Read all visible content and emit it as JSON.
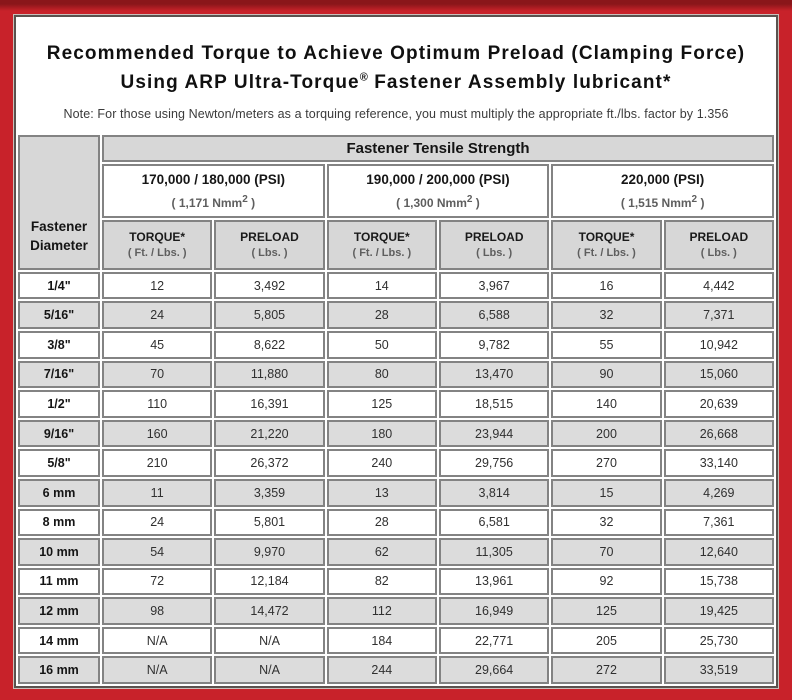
{
  "page": {
    "title_line1": "Recommended Torque to Achieve Optimum Preload (Clamping Force)",
    "title_line2_pre": "Using ARP Ultra-Torque",
    "title_line2_reg": "®",
    "title_line2_post": " Fastener Assembly lubricant*",
    "note": "Note: For those using Newton/meters as a torquing reference, you must multiply the appropriate ft./lbs. factor by 1.356"
  },
  "colors": {
    "border_red": "#c8222a",
    "border_red_dark": "#8a161a",
    "frame_gray": "#5a524e",
    "cell_gray": "#d7d7d7",
    "row_stripe_gray": "#dcdcdc",
    "grid_line": "#838383"
  },
  "table": {
    "corner_header_line1": "Fastener",
    "corner_header_line2": "Diameter",
    "group_header": "Fastener Tensile Strength",
    "strength_columns": [
      {
        "psi": "170,000 / 180,000 (PSI)",
        "nmm_pre": "( 1,171 Nmm",
        "nmm_sup": "2",
        "nmm_post": " )"
      },
      {
        "psi": "190,000 / 200,000 (PSI)",
        "nmm_pre": "( 1,300 Nmm",
        "nmm_sup": "2",
        "nmm_post": " )"
      },
      {
        "psi": "220,000 (PSI)",
        "nmm_pre": "( 1,515 Nmm",
        "nmm_sup": "2",
        "nmm_post": " )"
      }
    ],
    "sub_headers": {
      "torque_label": "TORQUE*",
      "torque_unit": "( Ft. / Lbs. )",
      "preload_label": "PRELOAD",
      "preload_unit": "( Lbs. )"
    },
    "rows": [
      {
        "diameter": "1/4\"",
        "values": [
          "12",
          "3,492",
          "14",
          "3,967",
          "16",
          "4,442"
        ]
      },
      {
        "diameter": "5/16\"",
        "values": [
          "24",
          "5,805",
          "28",
          "6,588",
          "32",
          "7,371"
        ]
      },
      {
        "diameter": "3/8\"",
        "values": [
          "45",
          "8,622",
          "50",
          "9,782",
          "55",
          "10,942"
        ]
      },
      {
        "diameter": "7/16\"",
        "values": [
          "70",
          "11,880",
          "80",
          "13,470",
          "90",
          "15,060"
        ]
      },
      {
        "diameter": "1/2\"",
        "values": [
          "110",
          "16,391",
          "125",
          "18,515",
          "140",
          "20,639"
        ]
      },
      {
        "diameter": "9/16\"",
        "values": [
          "160",
          "21,220",
          "180",
          "23,944",
          "200",
          "26,668"
        ]
      },
      {
        "diameter": "5/8\"",
        "values": [
          "210",
          "26,372",
          "240",
          "29,756",
          "270",
          "33,140"
        ]
      },
      {
        "diameter": "6 mm",
        "values": [
          "11",
          "3,359",
          "13",
          "3,814",
          "15",
          "4,269"
        ]
      },
      {
        "diameter": "8 mm",
        "values": [
          "24",
          "5,801",
          "28",
          "6,581",
          "32",
          "7,361"
        ]
      },
      {
        "diameter": "10 mm",
        "values": [
          "54",
          "9,970",
          "62",
          "11,305",
          "70",
          "12,640"
        ]
      },
      {
        "diameter": "11 mm",
        "values": [
          "72",
          "12,184",
          "82",
          "13,961",
          "92",
          "15,738"
        ]
      },
      {
        "diameter": "12 mm",
        "values": [
          "98",
          "14,472",
          "112",
          "16,949",
          "125",
          "19,425"
        ]
      },
      {
        "diameter": "14 mm",
        "values": [
          "N/A",
          "N/A",
          "184",
          "22,771",
          "205",
          "25,730"
        ]
      },
      {
        "diameter": "16 mm",
        "values": [
          "N/A",
          "N/A",
          "244",
          "29,664",
          "272",
          "33,519"
        ]
      }
    ]
  },
  "chart_data": {
    "type": "table",
    "title": "Recommended Torque to Achieve Optimum Preload (Clamping Force) Using ARP Ultra-Torque® Fastener Assembly lubricant*",
    "note": "Note: For those using Newton/meters as a torquing reference, you must multiply the appropriate ft./lbs. factor by 1.356",
    "column_group": "Fastener Tensile Strength",
    "columns": [
      "Fastener Diameter",
      "170,000 / 180,000 (PSI) ( 1,171 Nmm² ) TORQUE* ( Ft. / Lbs. )",
      "170,000 / 180,000 (PSI) ( 1,171 Nmm² ) PRELOAD ( Lbs. )",
      "190,000 / 200,000 (PSI) ( 1,300 Nmm² ) TORQUE* ( Ft. / Lbs. )",
      "190,000 / 200,000 (PSI) ( 1,300 Nmm² ) PRELOAD ( Lbs. )",
      "220,000 (PSI) ( 1,515 Nmm² ) TORQUE* ( Ft. / Lbs. )",
      "220,000 (PSI) ( 1,515 Nmm² ) PRELOAD ( Lbs. )"
    ],
    "rows": [
      [
        "1/4\"",
        12,
        3492,
        14,
        3967,
        16,
        4442
      ],
      [
        "5/16\"",
        24,
        5805,
        28,
        6588,
        32,
        7371
      ],
      [
        "3/8\"",
        45,
        8622,
        50,
        9782,
        55,
        10942
      ],
      [
        "7/16\"",
        70,
        11880,
        80,
        13470,
        90,
        15060
      ],
      [
        "1/2\"",
        110,
        16391,
        125,
        18515,
        140,
        20639
      ],
      [
        "9/16\"",
        160,
        21220,
        180,
        23944,
        200,
        26668
      ],
      [
        "5/8\"",
        210,
        26372,
        240,
        29756,
        270,
        33140
      ],
      [
        "6 mm",
        11,
        3359,
        13,
        3814,
        15,
        4269
      ],
      [
        "8 mm",
        24,
        5801,
        28,
        6581,
        32,
        7361
      ],
      [
        "10 mm",
        54,
        9970,
        62,
        11305,
        70,
        12640
      ],
      [
        "11 mm",
        72,
        12184,
        82,
        13961,
        92,
        15738
      ],
      [
        "12 mm",
        98,
        14472,
        112,
        16949,
        125,
        19425
      ],
      [
        "14 mm",
        null,
        null,
        184,
        22771,
        205,
        25730
      ],
      [
        "16 mm",
        null,
        null,
        244,
        29664,
        272,
        33519
      ]
    ]
  }
}
